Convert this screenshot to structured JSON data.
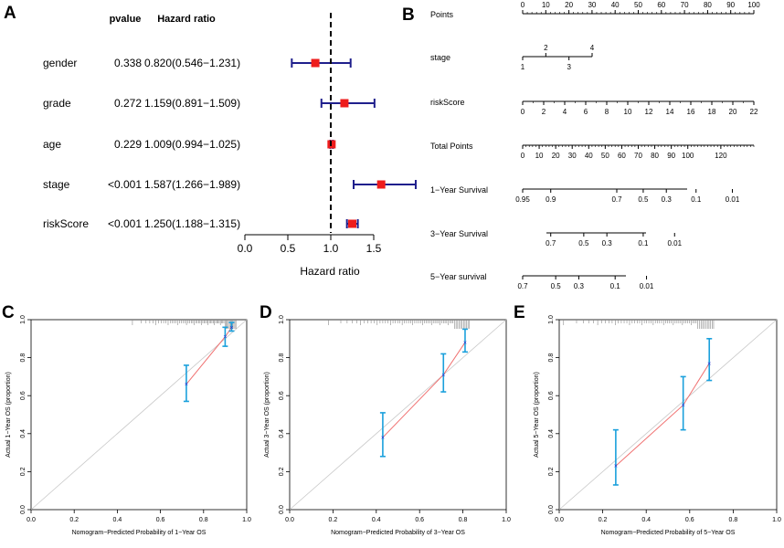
{
  "panel_labels": [
    "A",
    "B",
    "C",
    "D",
    "E"
  ],
  "colors": {
    "forest_ci": "#1f1f8c",
    "forest_point": "#ee1c1c",
    "calib_errorbar": "#1aa0dc",
    "calib_line": "#f07070",
    "calib_point": "#2b2bd0",
    "ideal_line": "#c8c8c8",
    "axis": "#000000"
  },
  "chart_data": [
    {
      "id": "A",
      "type": "forest",
      "headers": {
        "pvalue": "pvalue",
        "hr": "Hazard ratio"
      },
      "xlabel": "Hazard ratio",
      "xlim": [
        0.0,
        1.75
      ],
      "xticks": [
        "0.0",
        "0.5",
        "1.0",
        "1.5"
      ],
      "reference_line": 1.0,
      "rows": [
        {
          "label": "gender",
          "pvalue": "0.338",
          "hr_text": "0.820(0.546−1.231)",
          "hr": 0.82,
          "lo": 0.546,
          "hi": 1.231
        },
        {
          "label": "grade",
          "pvalue": "0.272",
          "hr_text": "1.159(0.891−1.509)",
          "hr": 1.159,
          "lo": 0.891,
          "hi": 1.509
        },
        {
          "label": "age",
          "pvalue": "0.229",
          "hr_text": "1.009(0.994−1.025)",
          "hr": 1.009,
          "lo": 0.994,
          "hi": 1.025
        },
        {
          "label": "stage",
          "pvalue": "<0.001",
          "hr_text": "1.587(1.266−1.989)",
          "hr": 1.587,
          "lo": 1.266,
          "hi": 1.989
        },
        {
          "label": "riskScore",
          "pvalue": "<0.001",
          "hr_text": "1.250(1.188−1.315)",
          "hr": 1.25,
          "lo": 1.188,
          "hi": 1.315
        }
      ]
    },
    {
      "id": "B",
      "type": "nomogram",
      "rows": [
        {
          "label": "Points",
          "range": [
            0,
            100
          ],
          "minor_step": 2,
          "labels": [
            [
              0,
              "0"
            ],
            [
              10,
              "10"
            ],
            [
              20,
              "20"
            ],
            [
              30,
              "30"
            ],
            [
              40,
              "40"
            ],
            [
              50,
              "50"
            ],
            [
              60,
              "60"
            ],
            [
              70,
              "70"
            ],
            [
              80,
              "80"
            ],
            [
              90,
              "90"
            ],
            [
              100,
              "100"
            ]
          ],
          "labels_above": true
        },
        {
          "label": "stage",
          "type": "stage",
          "range": [
            0,
            100
          ],
          "top_labels": [
            [
              10,
              "2"
            ],
            [
              30,
              "4"
            ]
          ],
          "bottom_labels": [
            [
              0,
              "1"
            ],
            [
              20,
              "3"
            ]
          ]
        },
        {
          "label": "riskScore",
          "range": [
            0,
            22
          ],
          "minor_step": 1,
          "labels": [
            [
              0,
              "0"
            ],
            [
              2,
              "2"
            ],
            [
              4,
              "4"
            ],
            [
              6,
              "6"
            ],
            [
              8,
              "8"
            ],
            [
              10,
              "10"
            ],
            [
              12,
              "12"
            ],
            [
              14,
              "14"
            ],
            [
              16,
              "16"
            ],
            [
              18,
              "18"
            ],
            [
              20,
              "20"
            ],
            [
              22,
              "22"
            ]
          ]
        },
        {
          "label": "Total Points",
          "range": [
            0,
            140
          ],
          "minor_step": 2,
          "labels": [
            [
              0,
              "0"
            ],
            [
              10,
              "10"
            ],
            [
              20,
              "20"
            ],
            [
              30,
              "30"
            ],
            [
              40,
              "40"
            ],
            [
              50,
              "50"
            ],
            [
              60,
              "60"
            ],
            [
              70,
              "70"
            ],
            [
              80,
              "80"
            ],
            [
              90,
              "90"
            ],
            [
              100,
              "100"
            ],
            [
              120,
              "120"
            ]
          ]
        },
        {
          "label": "1−Year Survival",
          "range": [
            0,
            140
          ],
          "labels": [
            [
              0,
              "0.95"
            ],
            [
              17,
              "0.9"
            ],
            [
              57,
              "0.7"
            ],
            [
              73,
              "0.5"
            ],
            [
              87,
              "0.3"
            ],
            [
              105,
              "0.1"
            ],
            [
              127,
              "0.01"
            ]
          ]
        },
        {
          "label": "3−Year Survival",
          "range": [
            0,
            140
          ],
          "labels": [
            [
              17,
              "0.7"
            ],
            [
              37,
              "0.5"
            ],
            [
              51,
              "0.3"
            ],
            [
              73,
              "0.1"
            ],
            [
              92,
              "0.01"
            ]
          ]
        },
        {
          "label": "5−Year survival",
          "range": [
            0,
            140
          ],
          "labels": [
            [
              0,
              "0.7"
            ],
            [
              20,
              "0.5"
            ],
            [
              34,
              "0.3"
            ],
            [
              56,
              "0.1"
            ],
            [
              75,
              "0.01"
            ]
          ]
        }
      ]
    },
    {
      "id": "C",
      "type": "calibration",
      "xlabel": "Nomogram−Predicted Probability of 1−Year OS",
      "ylabel": "Actual 1−Year OS (proportion)",
      "xlim": [
        0,
        1
      ],
      "ylim": [
        0,
        1
      ],
      "ticks": [
        "0.0",
        "0.2",
        "0.4",
        "0.6",
        "0.8",
        "1.0"
      ],
      "points": [
        {
          "x": 0.72,
          "y": 0.66,
          "lo": 0.57,
          "hi": 0.76
        },
        {
          "x": 0.9,
          "y": 0.91,
          "lo": 0.86,
          "hi": 0.96
        },
        {
          "x": 0.93,
          "y": 0.96,
          "lo": 0.94,
          "hi": 0.985
        }
      ]
    },
    {
      "id": "D",
      "type": "calibration",
      "xlabel": "Nomogram−Predicted Probability of 3−Year OS",
      "ylabel": "Actual 3−Year OS (proportion)",
      "xlim": [
        0,
        1
      ],
      "ylim": [
        0,
        1
      ],
      "ticks": [
        "0.0",
        "0.2",
        "0.4",
        "0.6",
        "0.8",
        "1.0"
      ],
      "points": [
        {
          "x": 0.43,
          "y": 0.38,
          "lo": 0.28,
          "hi": 0.51
        },
        {
          "x": 0.71,
          "y": 0.71,
          "lo": 0.62,
          "hi": 0.82
        },
        {
          "x": 0.81,
          "y": 0.88,
          "lo": 0.83,
          "hi": 0.95
        }
      ]
    },
    {
      "id": "E",
      "type": "calibration",
      "xlabel": "Nomogram−Predicted Probability of 5−Year OS",
      "ylabel": "Actual 5−Year OS (proportion)",
      "xlim": [
        0,
        1
      ],
      "ylim": [
        0,
        1
      ],
      "ticks": [
        "0.0",
        "0.2",
        "0.4",
        "0.6",
        "0.8",
        "1.0"
      ],
      "points": [
        {
          "x": 0.26,
          "y": 0.23,
          "lo": 0.13,
          "hi": 0.42
        },
        {
          "x": 0.57,
          "y": 0.55,
          "lo": 0.42,
          "hi": 0.7
        },
        {
          "x": 0.69,
          "y": 0.77,
          "lo": 0.68,
          "hi": 0.9
        }
      ]
    }
  ]
}
